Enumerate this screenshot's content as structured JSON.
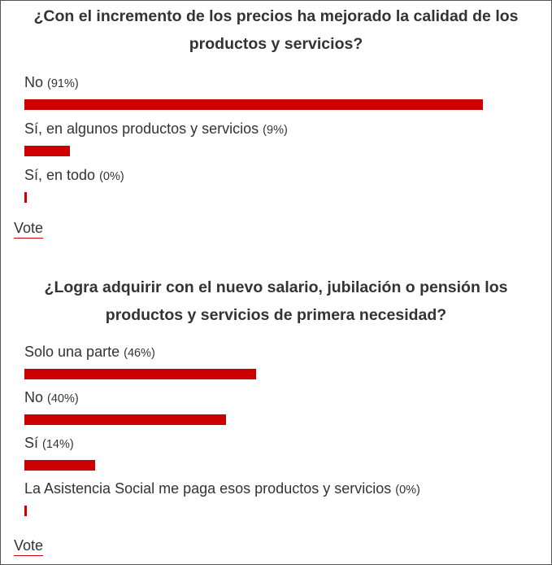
{
  "colors": {
    "bar": "#cc0000",
    "text": "#333333",
    "border": "#555555"
  },
  "polls": [
    {
      "question": "¿Con el incremento de los precios ha mejorado la calidad de los productos y servicios?",
      "options": [
        {
          "label": "No",
          "pct_text": "(91%)",
          "value": 91
        },
        {
          "label": "Sí, en algunos productos y servicios",
          "pct_text": "(9%)",
          "value": 9
        },
        {
          "label": "Sí, en todo",
          "pct_text": "(0%)",
          "value": 0
        }
      ],
      "vote_label": "Vote"
    },
    {
      "question": "¿Logra adquirir con el nuevo salario, jubilación o pensión los productos y servicios de primera necesidad?",
      "options": [
        {
          "label": "Solo una parte",
          "pct_text": "(46%)",
          "value": 46
        },
        {
          "label": "No",
          "pct_text": "(40%)",
          "value": 40
        },
        {
          "label": "Sí",
          "pct_text": "(14%)",
          "value": 14
        },
        {
          "label": "La Asistencia Social me paga esos productos y servicios",
          "pct_text": "(0%)",
          "value": 0
        }
      ],
      "vote_label": "Vote"
    }
  ]
}
